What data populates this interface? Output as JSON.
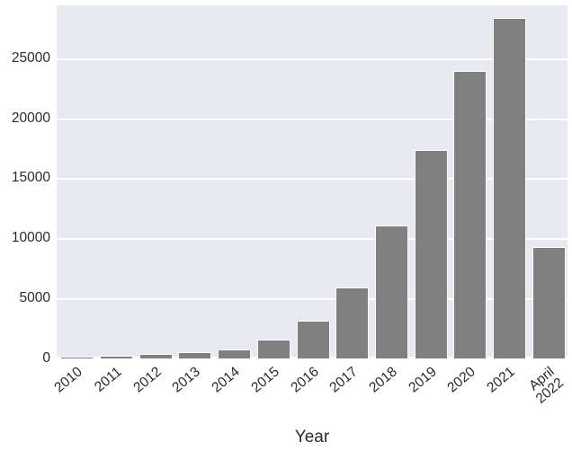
{
  "chart_data": {
    "type": "bar",
    "title": "",
    "xlabel": "Year",
    "ylabel": "",
    "categories": [
      "2010",
      "2011",
      "2012",
      "2013",
      "2014",
      "2015",
      "2016",
      "2017",
      "2018",
      "2019",
      "2020",
      "2021",
      "April\n2022"
    ],
    "values": [
      50,
      130,
      280,
      470,
      700,
      1500,
      3100,
      5800,
      11000,
      17300,
      23900,
      28300,
      9200
    ],
    "yticks": [
      0,
      5000,
      10000,
      15000,
      20000,
      25000
    ],
    "ylim": [
      0,
      29400
    ],
    "grid": true,
    "legend": false,
    "tick_rotation_deg": 40,
    "colors": {
      "bar_fill": "#808080",
      "bar_edge": "#fbfbfd",
      "plot_background": "#e9e9f1",
      "gridline": "#ffffff",
      "text": "#2b2b2b",
      "figure_background": "#ffffff"
    }
  }
}
